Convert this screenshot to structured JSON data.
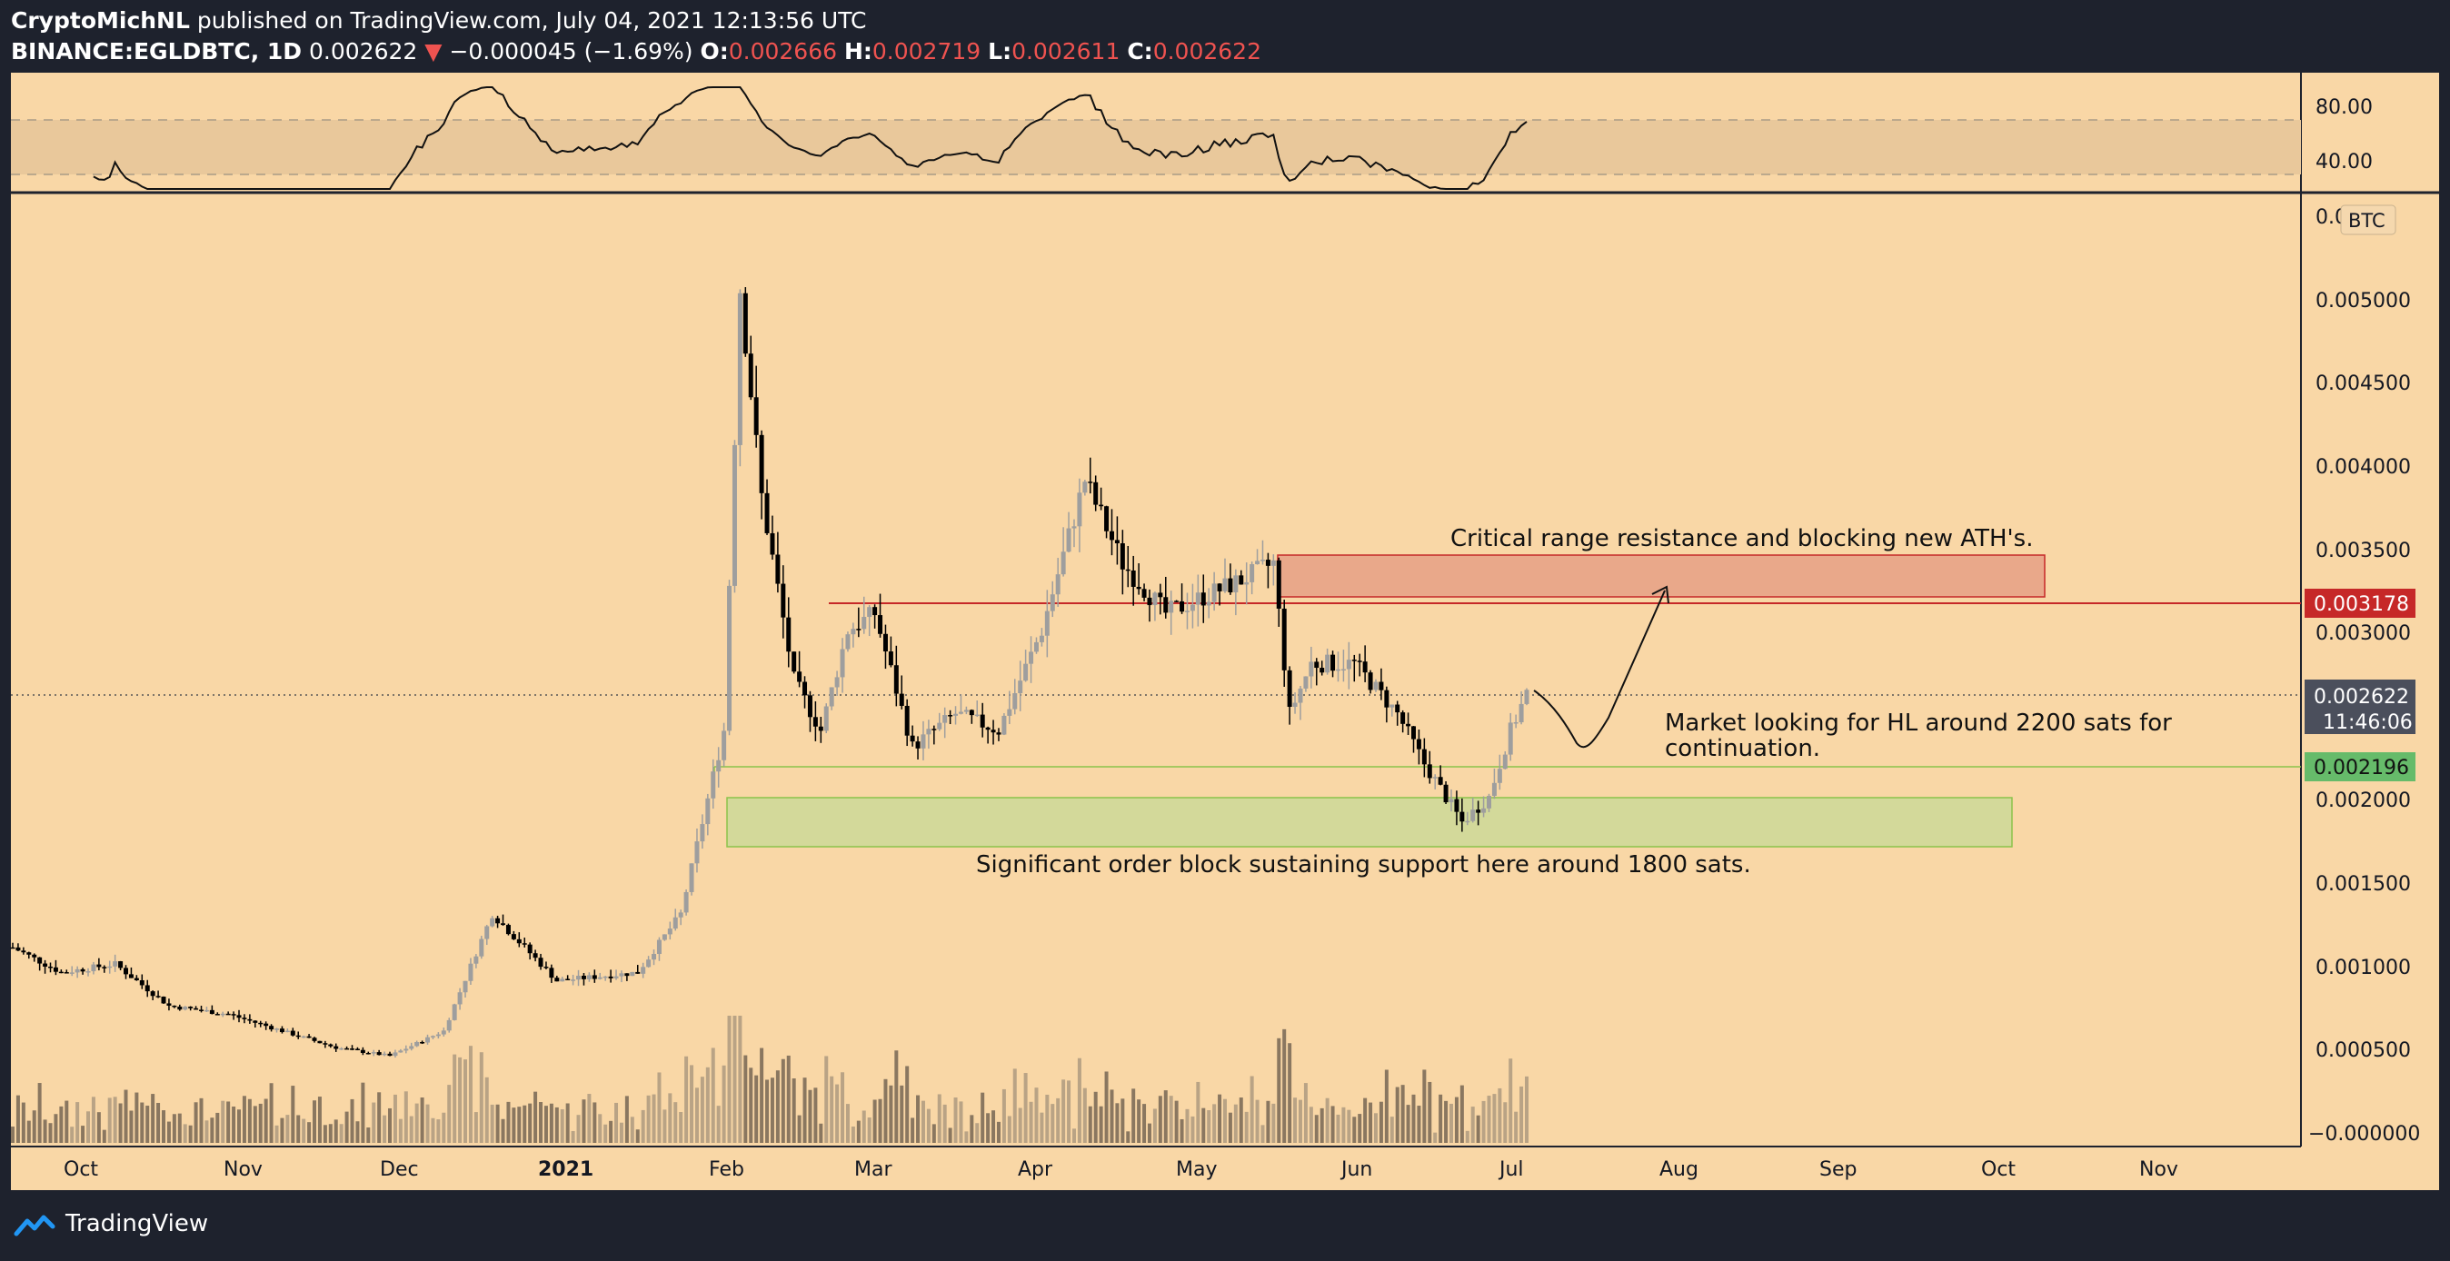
{
  "header": {
    "author": "CryptoMichNL",
    "published_text": " published on TradingView.com, July 04, 2021 12:13:56 UTC",
    "symbol": "BINANCE:EGLDBTC, 1D",
    "price": "0.002622",
    "change": "−0.000045 (−1.69%)",
    "o_label": "O:",
    "o_value": "0.002666",
    "h_label": "H:",
    "h_value": "0.002719",
    "l_label": "L:",
    "l_value": "0.002611",
    "c_label": "C:",
    "c_value": "0.002622"
  },
  "footer": {
    "brand": "TradingView"
  },
  "colors": {
    "background": "#f9d7a6",
    "frame": "#1e222d",
    "candle_up": "#9e9e9e",
    "candle_down": "#000000",
    "resistance_zone": "#e9a88a",
    "support_zone": "#d3d99a",
    "resistance_line": "#c62828",
    "support_line": "#8bc34a",
    "price_tag": "#4b4f5c",
    "resistance_tag": "#c62828",
    "support_tag": "#66bb6a"
  },
  "chart_data": {
    "type": "candlestick",
    "currency": "BTC",
    "y_ticks": [
      "0.005000",
      "0.004500",
      "0.004000",
      "0.003500",
      "0.003000",
      "0.002000",
      "0.001500",
      "0.001000",
      "0.000500",
      "−0.000000"
    ],
    "y_top_clipped_label": "0.0",
    "x_ticks": [
      "Oct",
      "Nov",
      "Dec",
      "2021",
      "Feb",
      "Mar",
      "Apr",
      "May",
      "Jun",
      "Jul",
      "Aug",
      "Sep",
      "Oct",
      "Nov"
    ],
    "price_series": [
      [
        "2020-09-26",
        0.0011
      ],
      [
        "2020-10-05",
        0.00095
      ],
      [
        "2020-10-15",
        0.001
      ],
      [
        "2020-10-25",
        0.00075
      ],
      [
        "2020-11-05",
        0.0007
      ],
      [
        "2020-11-15",
        0.0006
      ],
      [
        "2020-11-25",
        0.0005
      ],
      [
        "2020-12-05",
        0.00045
      ],
      [
        "2020-12-15",
        0.0006
      ],
      [
        "2020-12-24",
        0.0013
      ],
      [
        "2021-01-05",
        0.0009
      ],
      [
        "2021-01-20",
        0.00095
      ],
      [
        "2021-01-28",
        0.0013
      ],
      [
        "2021-02-01",
        0.00185
      ],
      [
        "2021-02-05",
        0.0024
      ],
      [
        "2021-02-08",
        0.00505
      ],
      [
        "2021-02-12",
        0.0038
      ],
      [
        "2021-02-18",
        0.0027
      ],
      [
        "2021-02-23",
        0.0024
      ],
      [
        "2021-02-28",
        0.003
      ],
      [
        "2021-03-05",
        0.0031
      ],
      [
        "2021-03-12",
        0.0023
      ],
      [
        "2021-03-20",
        0.0025
      ],
      [
        "2021-03-28",
        0.0024
      ],
      [
        "2021-04-05",
        0.003
      ],
      [
        "2021-04-13",
        0.0039
      ],
      [
        "2021-04-20",
        0.0034
      ],
      [
        "2021-04-28",
        0.0031
      ],
      [
        "2021-05-05",
        0.0032
      ],
      [
        "2021-05-12",
        0.0033
      ],
      [
        "2021-05-18",
        0.0034
      ],
      [
        "2021-05-21",
        0.0025
      ],
      [
        "2021-05-25",
        0.0028
      ],
      [
        "2021-06-02",
        0.0028
      ],
      [
        "2021-06-10",
        0.0025
      ],
      [
        "2021-06-15",
        0.0022
      ],
      [
        "2021-06-22",
        0.00185
      ],
      [
        "2021-06-27",
        0.002
      ],
      [
        "2021-07-01",
        0.0024
      ],
      [
        "2021-07-04",
        0.00262
      ]
    ],
    "rsi": {
      "levels": [
        "80.00",
        "40.00"
      ],
      "upper_band": 70,
      "lower_band": 30
    },
    "last_price": {
      "value": "0.002622",
      "countdown": "11:46:06"
    },
    "resistance": {
      "value": "0.003178"
    },
    "support": {
      "value": "0.002196"
    },
    "annotations": {
      "resistance_note": "Critical range resistance and blocking new ATH's.",
      "hl_note_line1": "Market looking for HL around 2200 sats for",
      "hl_note_line2": "continuation.",
      "support_note": "Significant order block sustaining support here around 1800 sats."
    }
  }
}
